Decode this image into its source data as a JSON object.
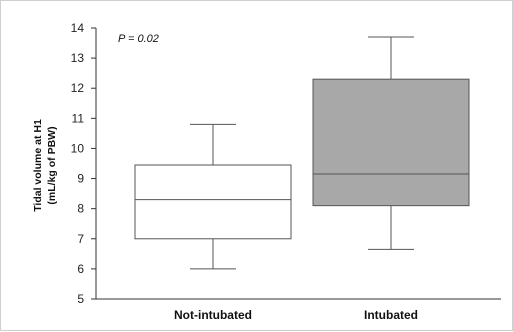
{
  "chart_data": {
    "type": "box",
    "ylabel_line1": "Tidal volume at H1",
    "ylabel_line2": "(mL/kg of PBW)",
    "xlabel": "",
    "ylim": [
      5,
      14
    ],
    "yticks": [
      5,
      6,
      7,
      8,
      9,
      10,
      11,
      12,
      13,
      14
    ],
    "ytick_labels": [
      "5",
      "6",
      "7",
      "8",
      "9",
      "10",
      "11",
      "12",
      "13",
      "14"
    ],
    "annotation": "P = 0.02",
    "grid": false,
    "categories": [
      "Not-intubated",
      "Intubated"
    ],
    "boxes": [
      {
        "category": "Not-intubated",
        "whisker_low": 6.0,
        "q1": 7.0,
        "median": 8.3,
        "q3": 9.45,
        "whisker_high": 10.8,
        "fill": "#ffffff"
      },
      {
        "category": "Intubated",
        "whisker_low": 6.65,
        "q1": 8.1,
        "median": 9.15,
        "q3": 12.3,
        "whisker_high": 13.7,
        "fill": "#a8a8a8"
      }
    ]
  }
}
